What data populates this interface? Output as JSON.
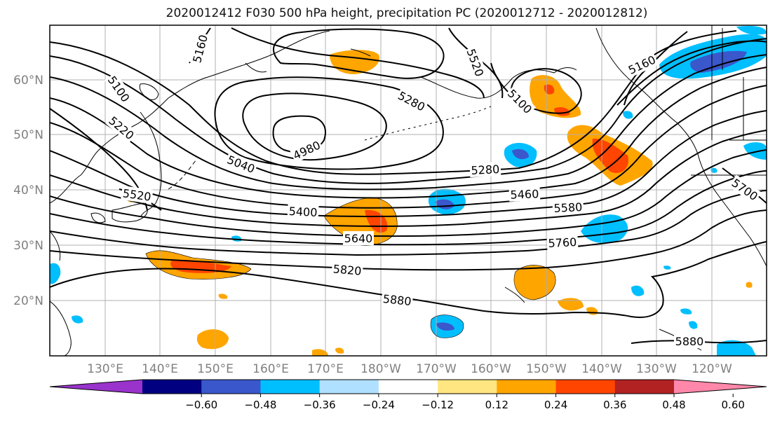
{
  "title": "2020012412 F030 500 hPa height, precipitation PC (2020012712 - 2020012812)",
  "axes": {
    "lat_labels": [
      "60°N",
      "50°N",
      "40°N",
      "30°N",
      "20°N"
    ],
    "lon_labels": [
      "130°E",
      "140°E",
      "150°E",
      "160°E",
      "170°E",
      "180°W",
      "170°W",
      "160°W",
      "150°W",
      "140°W",
      "130°W",
      "120°W"
    ],
    "label_color": "#808080"
  },
  "contour_labels": [
    "5100",
    "5160",
    "5220",
    "5280",
    "5520",
    "5400",
    "5040",
    "4980",
    "5640",
    "5820",
    "5880",
    "5280",
    "5460",
    "5580",
    "5760",
    "5880",
    "5700",
    "5160",
    "5100",
    "5520"
  ],
  "colorbar": {
    "tick_labels": [
      "−0.60",
      "−0.48",
      "−0.36",
      "−0.24",
      "−0.12",
      "0.12",
      "0.24",
      "0.36",
      "0.48",
      "0.60"
    ],
    "colors": [
      "#9933cc",
      "#000080",
      "#3a57cc",
      "#00bfff",
      "#b0e0ff",
      "#ffffff",
      "#ffe680",
      "#ffa500",
      "#ff4500",
      "#b22222",
      "#ff88aa"
    ]
  }
}
